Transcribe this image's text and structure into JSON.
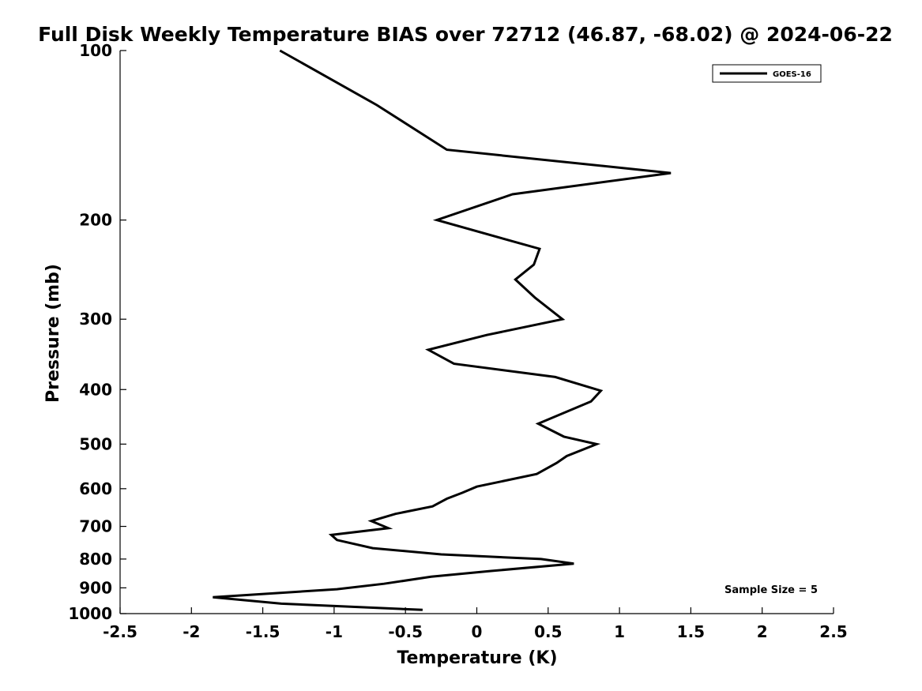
{
  "chart_data": {
    "type": "line",
    "title": "Full Disk Weekly Temperature BIAS over 72712 (46.87, -68.02) @ 2024-06-22",
    "xlabel": "Temperature (K)",
    "ylabel": "Pressure (mb)",
    "xlim": [
      -2.5,
      2.5
    ],
    "ylim": [
      1000,
      100
    ],
    "yscale": "log",
    "grid": false,
    "legend_position": "top-right",
    "x_ticks": [
      -2.5,
      -2,
      -1.5,
      -1,
      -0.5,
      0,
      0.5,
      1,
      1.5,
      2,
      2.5
    ],
    "x_tick_labels": [
      "-2.5",
      "-2",
      "-1.5",
      "-1",
      "-0.5",
      "0",
      "0.5",
      "1",
      "1.5",
      "2",
      "2.5"
    ],
    "y_ticks": [
      100,
      200,
      300,
      400,
      500,
      600,
      700,
      800,
      900,
      1000
    ],
    "y_tick_labels": [
      "100",
      "200",
      "300",
      "400",
      "500",
      "600",
      "700",
      "800",
      "900",
      "1000"
    ],
    "series": [
      {
        "name": "GOES-16",
        "color": "#000000",
        "points": [
          {
            "x": -1.38,
            "y": 100
          },
          {
            "x": -0.7,
            "y": 125
          },
          {
            "x": -0.21,
            "y": 150
          },
          {
            "x": 1.36,
            "y": 165
          },
          {
            "x": 0.25,
            "y": 180
          },
          {
            "x": -0.28,
            "y": 200
          },
          {
            "x": 0.44,
            "y": 225
          },
          {
            "x": 0.4,
            "y": 240
          },
          {
            "x": 0.27,
            "y": 255
          },
          {
            "x": 0.41,
            "y": 275
          },
          {
            "x": 0.6,
            "y": 300
          },
          {
            "x": 0.07,
            "y": 320
          },
          {
            "x": -0.34,
            "y": 340
          },
          {
            "x": -0.16,
            "y": 360
          },
          {
            "x": 0.55,
            "y": 380
          },
          {
            "x": 0.87,
            "y": 402
          },
          {
            "x": 0.8,
            "y": 420
          },
          {
            "x": 0.43,
            "y": 460
          },
          {
            "x": 0.61,
            "y": 485
          },
          {
            "x": 0.84,
            "y": 500
          },
          {
            "x": 0.63,
            "y": 525
          },
          {
            "x": 0.56,
            "y": 540
          },
          {
            "x": 0.42,
            "y": 565
          },
          {
            "x": 0.0,
            "y": 595
          },
          {
            "x": -0.1,
            "y": 610
          },
          {
            "x": -0.21,
            "y": 625
          },
          {
            "x": -0.31,
            "y": 645
          },
          {
            "x": -0.57,
            "y": 665
          },
          {
            "x": -0.74,
            "y": 685
          },
          {
            "x": -0.62,
            "y": 705
          },
          {
            "x": -1.02,
            "y": 725
          },
          {
            "x": -0.98,
            "y": 740
          },
          {
            "x": -0.73,
            "y": 765
          },
          {
            "x": -0.25,
            "y": 785
          },
          {
            "x": 0.45,
            "y": 800
          },
          {
            "x": 0.68,
            "y": 815
          },
          {
            "x": 0.1,
            "y": 840
          },
          {
            "x": -0.32,
            "y": 860
          },
          {
            "x": -0.65,
            "y": 885
          },
          {
            "x": -0.98,
            "y": 905
          },
          {
            "x": -1.85,
            "y": 935
          },
          {
            "x": -1.37,
            "y": 960
          },
          {
            "x": -0.38,
            "y": 985
          }
        ]
      }
    ],
    "annotations": [
      {
        "text": "Sample Size = 5",
        "position": "bottom-right"
      }
    ]
  }
}
